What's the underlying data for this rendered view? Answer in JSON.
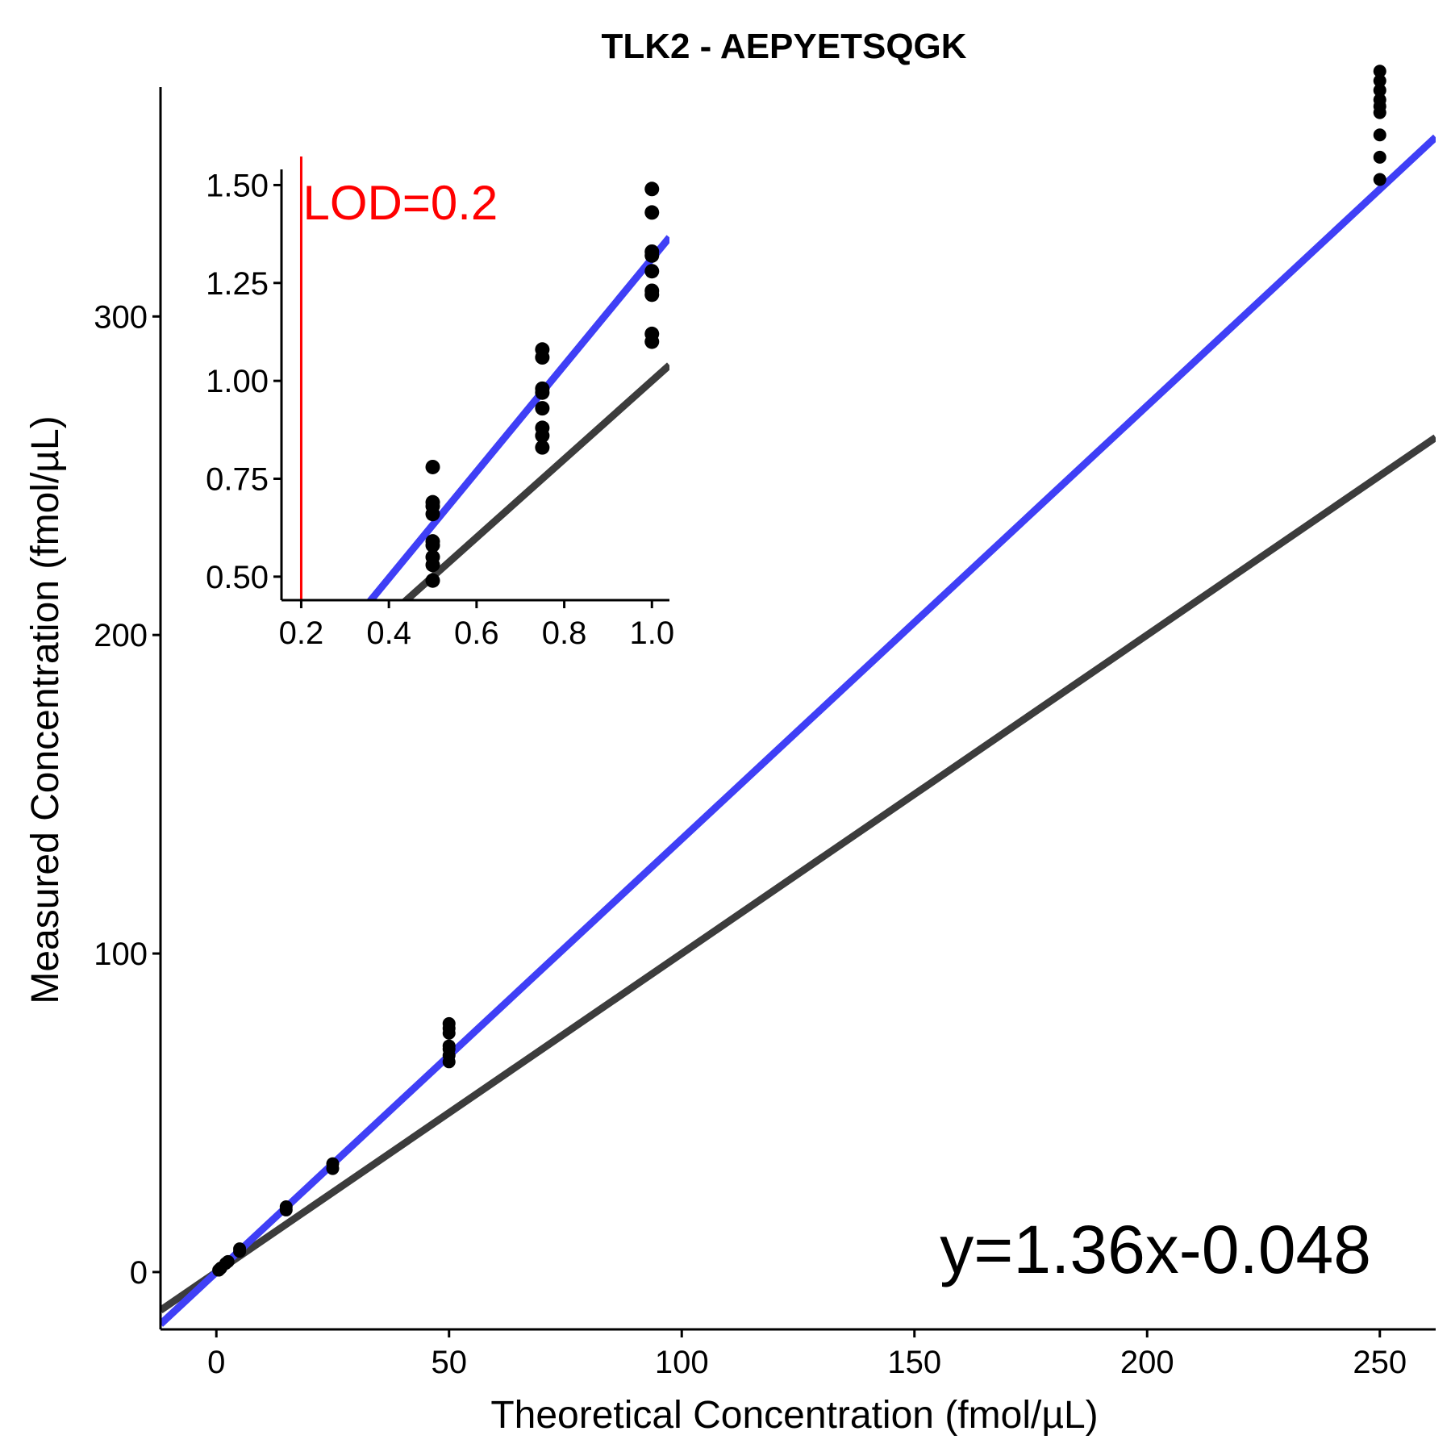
{
  "chart_data": [
    {
      "type": "scatter",
      "title": "TLK2 - AEPYETSQGK",
      "xlabel": "Theoretical Concentration (fmol/µL)",
      "ylabel": "Measured Concentration (fmol/µL)",
      "xlim": [
        -12,
        262
      ],
      "ylim": [
        -18,
        372
      ],
      "xticks": [
        0,
        50,
        100,
        150,
        200,
        250
      ],
      "yticks": [
        0,
        100,
        200,
        300
      ],
      "xtick_labels": [
        "0",
        "50",
        "100",
        "150",
        "200",
        "250"
      ],
      "ytick_labels": [
        "0",
        "100",
        "200",
        "300"
      ],
      "grid": false,
      "points": [
        {
          "x": 0.5,
          "y": 0.6
        },
        {
          "x": 0.75,
          "y": 0.95
        },
        {
          "x": 1,
          "y": 1.3
        },
        {
          "x": 2,
          "y": 2.7
        },
        {
          "x": 2.5,
          "y": 3.3
        },
        {
          "x": 5,
          "y": 6.5
        },
        {
          "x": 5,
          "y": 7.3
        },
        {
          "x": 15,
          "y": 19.5
        },
        {
          "x": 15,
          "y": 20.5
        },
        {
          "x": 25,
          "y": 32.5
        },
        {
          "x": 25,
          "y": 34
        },
        {
          "x": 50,
          "y": 66
        },
        {
          "x": 50,
          "y": 68
        },
        {
          "x": 50,
          "y": 70
        },
        {
          "x": 50,
          "y": 71
        },
        {
          "x": 50,
          "y": 75
        },
        {
          "x": 50,
          "y": 76.5
        },
        {
          "x": 50,
          "y": 78
        },
        {
          "x": 250,
          "y": 343
        },
        {
          "x": 250,
          "y": 350
        },
        {
          "x": 250,
          "y": 357
        },
        {
          "x": 250,
          "y": 364
        },
        {
          "x": 250,
          "y": 366
        },
        {
          "x": 250,
          "y": 368
        },
        {
          "x": 250,
          "y": 371
        },
        {
          "x": 250,
          "y": 374
        },
        {
          "x": 250,
          "y": 377
        }
      ],
      "lines": [
        {
          "slope": 1.36,
          "intercept": -0.048,
          "color": "#3f3ff6"
        },
        {
          "slope": 1,
          "intercept": 0,
          "color": "#3c3c3c"
        }
      ],
      "annotation": "y=1.36x-0.048"
    },
    {
      "type": "scatter",
      "xlim": [
        0.155,
        1.04
      ],
      "ylim": [
        0.44,
        1.54
      ],
      "xticks": [
        0.2,
        0.4,
        0.6,
        0.8,
        1.0
      ],
      "yticks": [
        0.5,
        0.75,
        1.0,
        1.25,
        1.5
      ],
      "xtick_labels": [
        "0.2",
        "0.4",
        "0.6",
        "0.8",
        "1.0"
      ],
      "ytick_labels": [
        "0.50",
        "0.75",
        "1.00",
        "1.25",
        "1.50"
      ],
      "points": [
        {
          "x": 0.5,
          "y": 0.78
        },
        {
          "x": 0.5,
          "y": 0.69
        },
        {
          "x": 0.5,
          "y": 0.68
        },
        {
          "x": 0.5,
          "y": 0.66
        },
        {
          "x": 0.5,
          "y": 0.59
        },
        {
          "x": 0.5,
          "y": 0.58
        },
        {
          "x": 0.5,
          "y": 0.55
        },
        {
          "x": 0.5,
          "y": 0.53
        },
        {
          "x": 0.5,
          "y": 0.49
        },
        {
          "x": 0.75,
          "y": 1.08
        },
        {
          "x": 0.75,
          "y": 1.06
        },
        {
          "x": 0.75,
          "y": 0.98
        },
        {
          "x": 0.75,
          "y": 0.97
        },
        {
          "x": 0.75,
          "y": 0.93
        },
        {
          "x": 0.75,
          "y": 0.88
        },
        {
          "x": 0.75,
          "y": 0.86
        },
        {
          "x": 0.75,
          "y": 0.83
        },
        {
          "x": 1.0,
          "y": 1.49
        },
        {
          "x": 1.0,
          "y": 1.43
        },
        {
          "x": 1.0,
          "y": 1.33
        },
        {
          "x": 1.0,
          "y": 1.32
        },
        {
          "x": 1.0,
          "y": 1.28
        },
        {
          "x": 1.0,
          "y": 1.23
        },
        {
          "x": 1.0,
          "y": 1.22
        },
        {
          "x": 1.0,
          "y": 1.12
        },
        {
          "x": 1.0,
          "y": 1.1
        }
      ],
      "lines": [
        {
          "slope": 1.36,
          "intercept": -0.048,
          "color": "#3f3ff6"
        },
        {
          "slope": 1,
          "intercept": 0,
          "color": "#3c3c3c"
        }
      ],
      "lod": {
        "x": 0.2,
        "label": "LOD=0.2",
        "color": "#ff0000"
      }
    }
  ]
}
